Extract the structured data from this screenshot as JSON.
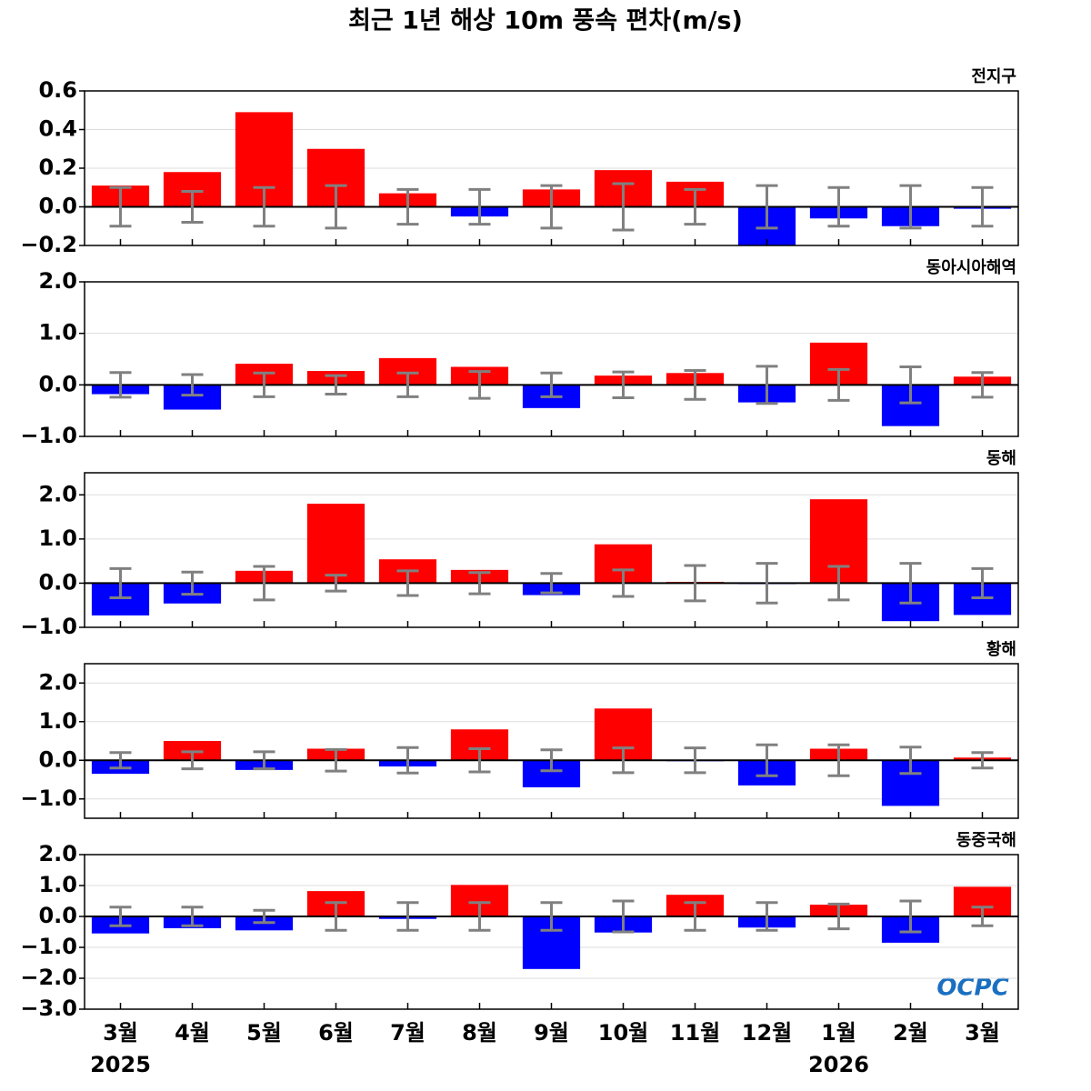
{
  "title": "최근 1년 해상 10m 풍속 편차(m/s)",
  "logo": "OCPC",
  "style": {
    "positive_color": "#ff0000",
    "negative_color": "#0000ff",
    "error_color": "#808080",
    "grid": true
  },
  "chart_data": [
    {
      "type": "bar",
      "label": "전지구",
      "values": [
        0.11,
        0.18,
        0.49,
        0.3,
        0.07,
        -0.05,
        0.09,
        0.19,
        0.13,
        -0.2,
        -0.06,
        -0.1,
        -0.01
      ],
      "errors": [
        0.1,
        0.08,
        0.1,
        0.11,
        0.09,
        0.09,
        0.11,
        0.12,
        0.09,
        0.11,
        0.1,
        0.11,
        0.1
      ],
      "ylim": [
        -0.2,
        0.6
      ],
      "yticks": [
        {
          "value": -0.2,
          "label": "−0.2"
        },
        {
          "value": 0,
          "label": "0.0"
        },
        0.2,
        0.4,
        0.6
      ]
    },
    {
      "type": "bar",
      "label": "동아시아해역",
      "values": [
        -0.18,
        -0.48,
        0.41,
        0.27,
        0.52,
        0.35,
        -0.45,
        0.18,
        0.23,
        -0.34,
        0.82,
        -0.8,
        0.16
      ],
      "errors": [
        0.24,
        0.2,
        0.23,
        0.18,
        0.23,
        0.26,
        0.23,
        0.25,
        0.28,
        0.36,
        0.3,
        0.35,
        0.24
      ],
      "ylim": [
        -1,
        2
      ],
      "yticks": [
        {
          "value": -1,
          "label": "−1.0"
        },
        {
          "value": 0,
          "label": "0.0"
        },
        {
          "value": 1,
          "label": "1.0"
        },
        {
          "value": 2,
          "label": "2.0"
        }
      ]
    },
    {
      "type": "bar",
      "label": "동해",
      "values": [
        -0.73,
        -0.46,
        0.28,
        1.8,
        0.54,
        0.3,
        -0.27,
        0.88,
        0.03,
        -0.01,
        1.9,
        -0.86,
        -0.72
      ],
      "errors": [
        0.33,
        0.25,
        0.38,
        0.18,
        0.28,
        0.24,
        0.22,
        0.3,
        0.4,
        0.45,
        0.38,
        0.45,
        0.33
      ],
      "ylim": [
        -1,
        2.5
      ],
      "yticks": [
        {
          "value": -1,
          "label": "−1.0"
        },
        {
          "value": 0,
          "label": "0.0"
        },
        {
          "value": 1,
          "label": "1.0"
        },
        {
          "value": 2,
          "label": "2.0"
        }
      ]
    },
    {
      "type": "bar",
      "label": "황해",
      "values": [
        -0.35,
        0.5,
        -0.25,
        0.3,
        -0.16,
        0.8,
        -0.7,
        1.34,
        -0.02,
        -0.65,
        0.3,
        -1.18,
        0.07
      ],
      "errors": [
        0.2,
        0.22,
        0.22,
        0.28,
        0.33,
        0.3,
        0.27,
        0.32,
        0.32,
        0.4,
        0.4,
        0.34,
        0.2
      ],
      "ylim": [
        -1.5,
        2.5
      ],
      "yticks": [
        {
          "value": -1,
          "label": "−1.0"
        },
        {
          "value": 0,
          "label": "0.0"
        },
        {
          "value": 1,
          "label": "1.0"
        },
        {
          "value": 2,
          "label": "2.0"
        }
      ]
    },
    {
      "type": "bar",
      "label": "동중국해",
      "values": [
        -0.55,
        -0.38,
        -0.45,
        0.82,
        -0.08,
        1.02,
        -1.7,
        -0.52,
        0.7,
        -0.36,
        0.38,
        -0.85,
        0.96
      ],
      "errors": [
        0.3,
        0.3,
        0.2,
        0.45,
        0.45,
        0.45,
        0.45,
        0.5,
        0.45,
        0.45,
        0.4,
        0.5,
        0.3
      ],
      "ylim": [
        -3,
        2
      ],
      "yticks": [
        {
          "value": -3,
          "label": "−3.0"
        },
        {
          "value": -2,
          "label": "−2.0"
        },
        {
          "value": -1,
          "label": "−1.0"
        },
        {
          "value": 0,
          "label": "0.0"
        },
        {
          "value": 1,
          "label": "1.0"
        },
        {
          "value": 2,
          "label": "2.0"
        }
      ],
      "categories": [
        "3월",
        "4월",
        "5월",
        "6월",
        "7월",
        "8월",
        "9월",
        "10월",
        "11월",
        "12월",
        "1월",
        "2월",
        "3월"
      ],
      "years": [
        "2025",
        null,
        null,
        null,
        null,
        null,
        null,
        null,
        null,
        null,
        "2026",
        null,
        null
      ]
    }
  ]
}
